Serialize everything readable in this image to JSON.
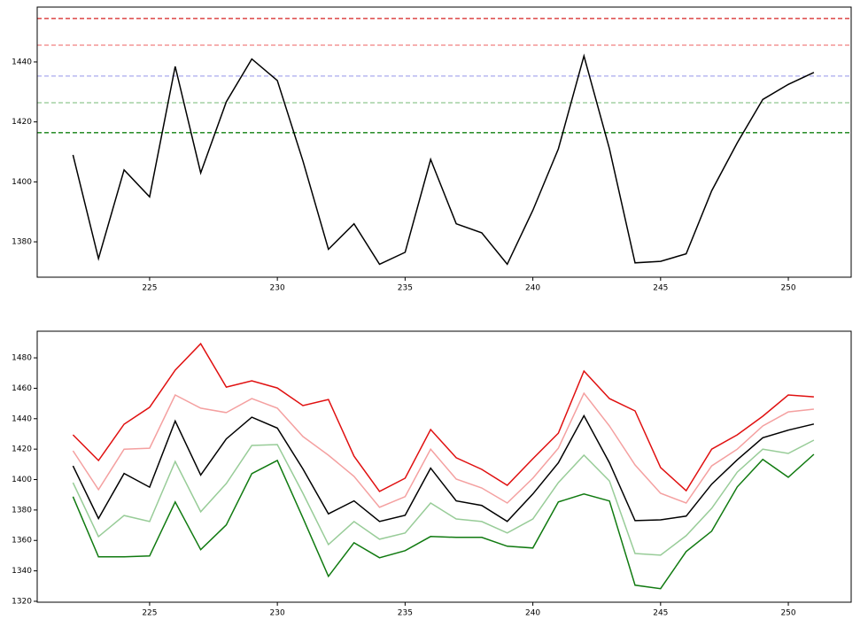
{
  "chart_data": [
    {
      "type": "line",
      "x": [
        222,
        223,
        224,
        225,
        226,
        227,
        228,
        229,
        230,
        231,
        232,
        233,
        234,
        235,
        236,
        237,
        238,
        239,
        240,
        241,
        242,
        243,
        244,
        245,
        246,
        247,
        248,
        249,
        250,
        251
      ],
      "series": [
        {
          "color": "black",
          "values": [
            1409,
            1374.4,
            1404,
            1395,
            1438.5,
            1403,
            1426.7,
            1441,
            1433.8,
            1407,
            1377.5,
            1386,
            1372.5,
            1376.5,
            1407.5,
            1386,
            1383,
            1372.5,
            1390.5,
            1411,
            1442,
            1411,
            1373,
            1373.5,
            1376,
            1397,
            1413,
            1427.5,
            1432.5,
            1436.5
          ]
        }
      ],
      "hlines": [
        {
          "value": 1454.5,
          "color": "#d62020"
        },
        {
          "value": 1445.6,
          "color": "#f08080"
        },
        {
          "value": 1435.3,
          "color": "#aaaaee"
        },
        {
          "value": 1426.4,
          "color": "#90c890"
        },
        {
          "value": 1416.4,
          "color": "#108010"
        }
      ],
      "xlim": [
        220.6,
        252.46
      ],
      "ylim": [
        1368.2,
        1458.3
      ],
      "xticks": [
        225,
        230,
        235,
        240,
        245,
        250
      ],
      "yticks": [
        1380,
        1400,
        1420,
        1440
      ]
    },
    {
      "type": "line",
      "x": [
        222,
        223,
        224,
        225,
        226,
        227,
        228,
        229,
        230,
        231,
        232,
        233,
        234,
        235,
        236,
        237,
        238,
        239,
        240,
        241,
        242,
        243,
        244,
        245,
        246,
        247,
        248,
        249,
        250,
        251
      ],
      "series": [
        {
          "color": "#e01010",
          "values": [
            1429.4,
            1412.5,
            1436.4,
            1447.5,
            1471.9,
            1489.3,
            1460.8,
            1464.9,
            1460.2,
            1448.6,
            1452.6,
            1415.4,
            1392.2,
            1400.9,
            1432.9,
            1414.3,
            1406.7,
            1396.2,
            1413.7,
            1430.5,
            1471.3,
            1453.2,
            1445.1,
            1407.9,
            1392.7,
            1420,
            1429.4,
            1441.6,
            1455.6,
            1454.4
          ]
        },
        {
          "color": "#f4a0a0",
          "values": [
            1418.9,
            1393.4,
            1420,
            1420.6,
            1455.6,
            1446.9,
            1444,
            1453.2,
            1446.9,
            1428.3,
            1416,
            1402.1,
            1381.8,
            1388.8,
            1420,
            1400.3,
            1394.5,
            1384.6,
            1400.9,
            1420.6,
            1456.7,
            1435.2,
            1409.6,
            1391,
            1384.6,
            1409,
            1420,
            1435.2,
            1444.5,
            1446.3
          ]
        },
        {
          "color": "black",
          "values": [
            1409,
            1374.4,
            1404,
            1395,
            1438.5,
            1403,
            1426.7,
            1441,
            1433.8,
            1407,
            1377.5,
            1386,
            1372.5,
            1376.5,
            1407.5,
            1386,
            1383,
            1372.5,
            1390.5,
            1411,
            1442,
            1411,
            1373,
            1373.5,
            1376,
            1397,
            1413,
            1427.5,
            1432.5,
            1436.5
          ]
        },
        {
          "color": "#98cc98",
          "values": [
            1398,
            1362.5,
            1376.4,
            1372.4,
            1411.9,
            1378.8,
            1397.4,
            1422.4,
            1423,
            1391,
            1357.3,
            1372.4,
            1360.8,
            1364.9,
            1384.6,
            1374.1,
            1372.4,
            1364.9,
            1374.1,
            1398,
            1416,
            1399.1,
            1351.4,
            1350.3,
            1363.1,
            1381.1,
            1404.9,
            1420,
            1417.2,
            1425.9
          ]
        },
        {
          "color": "#107a10",
          "values": [
            1388.8,
            1349.2,
            1349.2,
            1349.8,
            1385.3,
            1353.9,
            1370.2,
            1403.9,
            1412.6,
            1374.8,
            1336.4,
            1358.5,
            1348.6,
            1353.3,
            1362.6,
            1362,
            1362,
            1356.2,
            1355,
            1385.3,
            1390.5,
            1385.9,
            1330.6,
            1328.3,
            1352.7,
            1366.1,
            1395.2,
            1413.2,
            1401.5,
            1416.6
          ]
        }
      ],
      "xlim": [
        220.6,
        252.46
      ],
      "ylim": [
        1319.4,
        1497.5
      ],
      "xticks": [
        225,
        230,
        235,
        240,
        245,
        250
      ],
      "yticks": [
        1320,
        1340,
        1360,
        1380,
        1400,
        1420,
        1440,
        1460,
        1480
      ]
    }
  ]
}
